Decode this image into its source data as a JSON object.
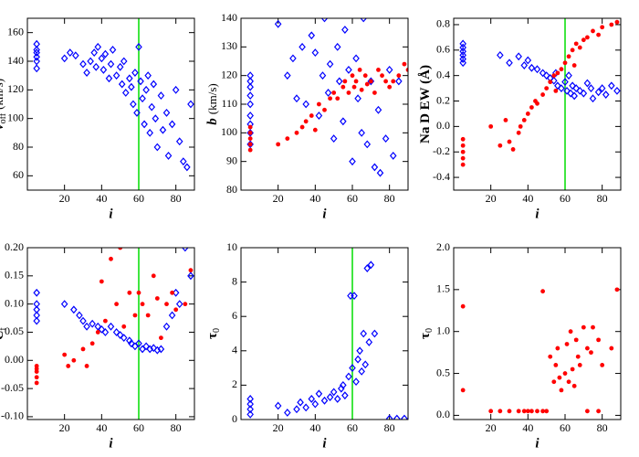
{
  "chart_data": [
    {
      "type": "scatter",
      "xlabel": "i",
      "ylabel": "v",
      "ylabel_sub": "off",
      "ylabel_unit": "(km/s)",
      "ylabel_italic": true,
      "xlim": [
        0,
        90
      ],
      "ylim": [
        50,
        170
      ],
      "xticks": [
        20,
        40,
        60,
        80
      ],
      "yticks": [
        60,
        80,
        100,
        120,
        140,
        160
      ],
      "vline": 60,
      "vline_color": "#00dd00",
      "series": [
        {
          "color": "#0000ff",
          "marker": "diamond",
          "x": [
            5,
            5,
            5,
            5,
            5,
            5,
            20,
            23,
            26,
            30,
            32,
            34,
            36,
            37,
            38,
            40,
            41,
            42,
            44,
            45,
            46,
            48,
            50,
            51,
            52,
            53,
            55,
            56,
            57,
            58,
            59,
            60,
            61,
            62,
            63,
            64,
            65,
            66,
            67,
            68,
            69,
            70,
            72,
            73,
            75,
            76,
            78,
            80,
            82,
            84,
            86,
            88
          ],
          "values": [
            135,
            140,
            143,
            146,
            148,
            152,
            142,
            146,
            144,
            138,
            132,
            140,
            146,
            136,
            150,
            142,
            134,
            145,
            128,
            138,
            148,
            130,
            136,
            124,
            140,
            118,
            128,
            122,
            110,
            132,
            104,
            150,
            126,
            114,
            96,
            120,
            130,
            90,
            108,
            124,
            100,
            80,
            116,
            92,
            104,
            74,
            96,
            120,
            84,
            70,
            66,
            110
          ]
        }
      ]
    },
    {
      "type": "scatter",
      "xlabel": "i",
      "ylabel": "b",
      "ylabel_unit": "(km/s)",
      "ylabel_italic": true,
      "xlim": [
        0,
        90
      ],
      "ylim": [
        80,
        140
      ],
      "xticks": [
        20,
        40,
        60,
        80
      ],
      "yticks": [
        80,
        90,
        100,
        110,
        120,
        130,
        140
      ],
      "series": [
        {
          "color": "#0000ff",
          "marker": "diamond",
          "x": [
            5,
            5,
            5,
            5,
            5,
            5,
            5,
            5,
            5,
            20,
            25,
            28,
            30,
            33,
            35,
            38,
            40,
            42,
            44,
            45,
            47,
            48,
            50,
            52,
            53,
            55,
            56,
            58,
            60,
            62,
            63,
            65,
            66,
            68,
            70,
            72,
            74,
            75,
            78,
            80,
            82,
            85
          ],
          "values": [
            96,
            100,
            103,
            106,
            110,
            113,
            116,
            118,
            120,
            138,
            120,
            126,
            112,
            130,
            110,
            134,
            128,
            106,
            120,
            140,
            114,
            124,
            98,
            130,
            118,
            104,
            136,
            122,
            90,
            126,
            112,
            100,
            140,
            96,
            118,
            88,
            108,
            86,
            98,
            122,
            92,
            118
          ]
        },
        {
          "color": "#ff0000",
          "marker": "circle",
          "x": [
            5,
            5,
            5,
            5,
            5,
            20,
            25,
            30,
            33,
            35,
            38,
            40,
            42,
            45,
            48,
            50,
            52,
            55,
            56,
            58,
            60,
            61,
            62,
            64,
            65,
            67,
            68,
            70,
            72,
            74,
            76,
            78,
            80,
            82,
            85,
            88,
            90
          ],
          "values": [
            94,
            96,
            98,
            100,
            102,
            96,
            98,
            100,
            102,
            104,
            106,
            101,
            110,
            108,
            112,
            114,
            112,
            116,
            118,
            114,
            120,
            116,
            118,
            122,
            115,
            120,
            117,
            118,
            114,
            122,
            120,
            118,
            116,
            118,
            120,
            124,
            122
          ]
        }
      ]
    },
    {
      "type": "scatter",
      "xlabel": "i",
      "ylabel": "Na D EW (Å)",
      "ylabel_italic": false,
      "xlim": [
        0,
        90
      ],
      "ylim": [
        -0.5,
        0.85
      ],
      "xticks": [
        20,
        40,
        60,
        80
      ],
      "yticks": [
        -0.4,
        -0.2,
        {
          "value": 0,
          "label": "0.0"
        },
        0.2,
        0.4,
        0.6,
        0.8
      ],
      "vline": 60,
      "vline_color": "#00dd00",
      "series": [
        {
          "color": "#0000ff",
          "marker": "diamond",
          "x": [
            5,
            5,
            5,
            5,
            5,
            5,
            25,
            30,
            35,
            38,
            40,
            42,
            45,
            48,
            50,
            52,
            54,
            55,
            56,
            58,
            60,
            61,
            62,
            63,
            64,
            65,
            66,
            68,
            70,
            72,
            74,
            75,
            78,
            80,
            82,
            85,
            88
          ],
          "values": [
            0.5,
            0.53,
            0.56,
            0.59,
            0.62,
            0.65,
            0.56,
            0.5,
            0.55,
            0.48,
            0.52,
            0.46,
            0.45,
            0.42,
            0.4,
            0.38,
            0.36,
            0.42,
            0.32,
            0.3,
            0.35,
            0.28,
            0.4,
            0.26,
            0.32,
            0.24,
            0.3,
            0.28,
            0.26,
            0.34,
            0.3,
            0.22,
            0.27,
            0.3,
            0.25,
            0.32,
            0.28
          ]
        },
        {
          "color": "#ff0000",
          "marker": "circle",
          "x": [
            5,
            5,
            5,
            5,
            5,
            20,
            25,
            28,
            30,
            32,
            35,
            36,
            38,
            40,
            42,
            44,
            45,
            48,
            50,
            52,
            54,
            55,
            56,
            58,
            60,
            62,
            64,
            65,
            66,
            68,
            70,
            72,
            75,
            78,
            80,
            85,
            88
          ],
          "values": [
            -0.3,
            -0.25,
            -0.2,
            -0.15,
            -0.1,
            0,
            -0.15,
            0.05,
            -0.12,
            -0.18,
            -0.05,
            0,
            0.05,
            0.1,
            0.15,
            0.2,
            0.18,
            0.25,
            0.3,
            0.35,
            0.4,
            0.28,
            0.42,
            0.45,
            0.5,
            0.55,
            0.6,
            0.48,
            0.65,
            0.62,
            0.68,
            0.7,
            0.75,
            0.72,
            0.78,
            0.8,
            0.82
          ]
        }
      ]
    },
    {
      "type": "scatter",
      "xlabel": "i",
      "ylabel": "C",
      "ylabel_sub": "f",
      "ylabel_italic": true,
      "xlim": [
        0,
        90
      ],
      "ylim": [
        -0.105,
        0.2
      ],
      "xticks": [
        20,
        40,
        60,
        80
      ],
      "yticks": [
        {
          "value": -0.1,
          "label": "-0.10"
        },
        -0.05,
        {
          "value": 0,
          "label": "0.00"
        },
        0.05,
        {
          "value": 0.1,
          "label": "0.10"
        },
        0.15,
        {
          "value": 0.2,
          "label": "0.20"
        }
      ],
      "vline": 60,
      "vline_color": "#00dd00",
      "series": [
        {
          "color": "#0000ff",
          "marker": "diamond",
          "x": [
            5,
            5,
            5,
            5,
            5,
            20,
            25,
            28,
            30,
            32,
            35,
            38,
            40,
            42,
            45,
            48,
            50,
            52,
            55,
            56,
            58,
            60,
            62,
            64,
            66,
            68,
            70,
            72,
            75,
            78,
            80,
            82,
            85,
            88
          ],
          "values": [
            0.07,
            0.08,
            0.09,
            0.1,
            0.12,
            0.1,
            0.09,
            0.08,
            0.07,
            0.06,
            0.065,
            0.06,
            0.055,
            0.05,
            0.06,
            0.05,
            0.045,
            0.04,
            0.035,
            0.03,
            0.025,
            0.03,
            0.02,
            0.025,
            0.02,
            0.022,
            0.018,
            0.02,
            0.06,
            0.08,
            0.12,
            0.1,
            0.2,
            0.15
          ]
        },
        {
          "color": "#ff0000",
          "marker": "circle",
          "x": [
            5,
            5,
            5,
            5,
            5,
            20,
            22,
            25,
            30,
            32,
            35,
            38,
            40,
            42,
            45,
            48,
            50,
            52,
            55,
            58,
            60,
            62,
            65,
            68,
            70,
            72,
            75,
            78,
            80,
            85,
            88
          ],
          "values": [
            -0.04,
            -0.03,
            -0.02,
            -0.015,
            -0.01,
            0.01,
            -0.01,
            0,
            0.02,
            -0.01,
            0.03,
            0.05,
            0.14,
            0.07,
            0.18,
            0.1,
            0.2,
            0.06,
            0.12,
            0.08,
            0.12,
            0.1,
            0.08,
            0.15,
            0.11,
            0.04,
            0.1,
            0.12,
            0.09,
            0.1,
            0.16
          ]
        }
      ]
    },
    {
      "type": "scatter",
      "xlabel": "i",
      "ylabel": "τ",
      "ylabel_sub": "0",
      "ylabel_italic": false,
      "xlim": [
        0,
        90
      ],
      "ylim": [
        0,
        10
      ],
      "xticks": [
        20,
        40,
        60,
        80
      ],
      "yticks": [
        0,
        2,
        4,
        6,
        8,
        10
      ],
      "vline": 60,
      "vline_color": "#00dd00",
      "series": [
        {
          "color": "#0000ff",
          "marker": "diamond",
          "x": [
            5,
            5,
            5,
            5,
            20,
            25,
            30,
            32,
            35,
            38,
            40,
            42,
            45,
            48,
            50,
            52,
            54,
            55,
            56,
            58,
            59,
            60,
            61,
            62,
            63,
            64,
            65,
            66,
            67,
            68,
            69,
            70,
            72,
            80,
            84,
            88
          ],
          "values": [
            0.3,
            0.6,
            0.9,
            1.2,
            0.8,
            0.4,
            0.6,
            1,
            0.7,
            1.2,
            0.9,
            1.5,
            1.1,
            1.3,
            1.6,
            1.2,
            1.8,
            2,
            1.4,
            2.5,
            7.2,
            3,
            7.2,
            2.2,
            3.5,
            4,
            2.8,
            5,
            3.2,
            8.8,
            4.5,
            9,
            5,
            0.05,
            0.05,
            0.05
          ]
        }
      ]
    },
    {
      "type": "scatter",
      "xlabel": "i",
      "ylabel": "τ",
      "ylabel_sub": "0",
      "ylabel_italic": false,
      "xlim": [
        0,
        90
      ],
      "ylim": [
        -0.05,
        2.0
      ],
      "xticks": [
        20,
        40,
        60,
        80
      ],
      "yticks": [
        {
          "value": 0,
          "label": "0.0"
        },
        0.5,
        {
          "value": 1,
          "label": "1.0"
        },
        1.5,
        {
          "value": 2,
          "label": "2.0"
        }
      ],
      "series": [
        {
          "color": "#ff0000",
          "marker": "circle",
          "x": [
            5,
            5,
            20,
            25,
            30,
            35,
            38,
            40,
            42,
            45,
            48,
            50,
            52,
            54,
            55,
            56,
            57,
            58,
            60,
            61,
            62,
            63,
            64,
            65,
            66,
            67,
            68,
            70,
            72,
            74,
            75,
            78,
            80,
            85,
            88,
            48,
            72,
            78
          ],
          "values": [
            0.3,
            1.3,
            0.05,
            0.05,
            0.05,
            0.05,
            0.05,
            0.05,
            0.05,
            0.05,
            0.05,
            0.05,
            0.7,
            0.4,
            0.6,
            0.8,
            0.45,
            0.3,
            0.5,
            0.85,
            0.4,
            1,
            0.55,
            0.35,
            0.9,
            0.7,
            0.6,
            1.05,
            0.8,
            0.75,
            1.05,
            0.9,
            0.6,
            0.8,
            1.5,
            1.48,
            0.05,
            0.05
          ]
        }
      ]
    }
  ]
}
